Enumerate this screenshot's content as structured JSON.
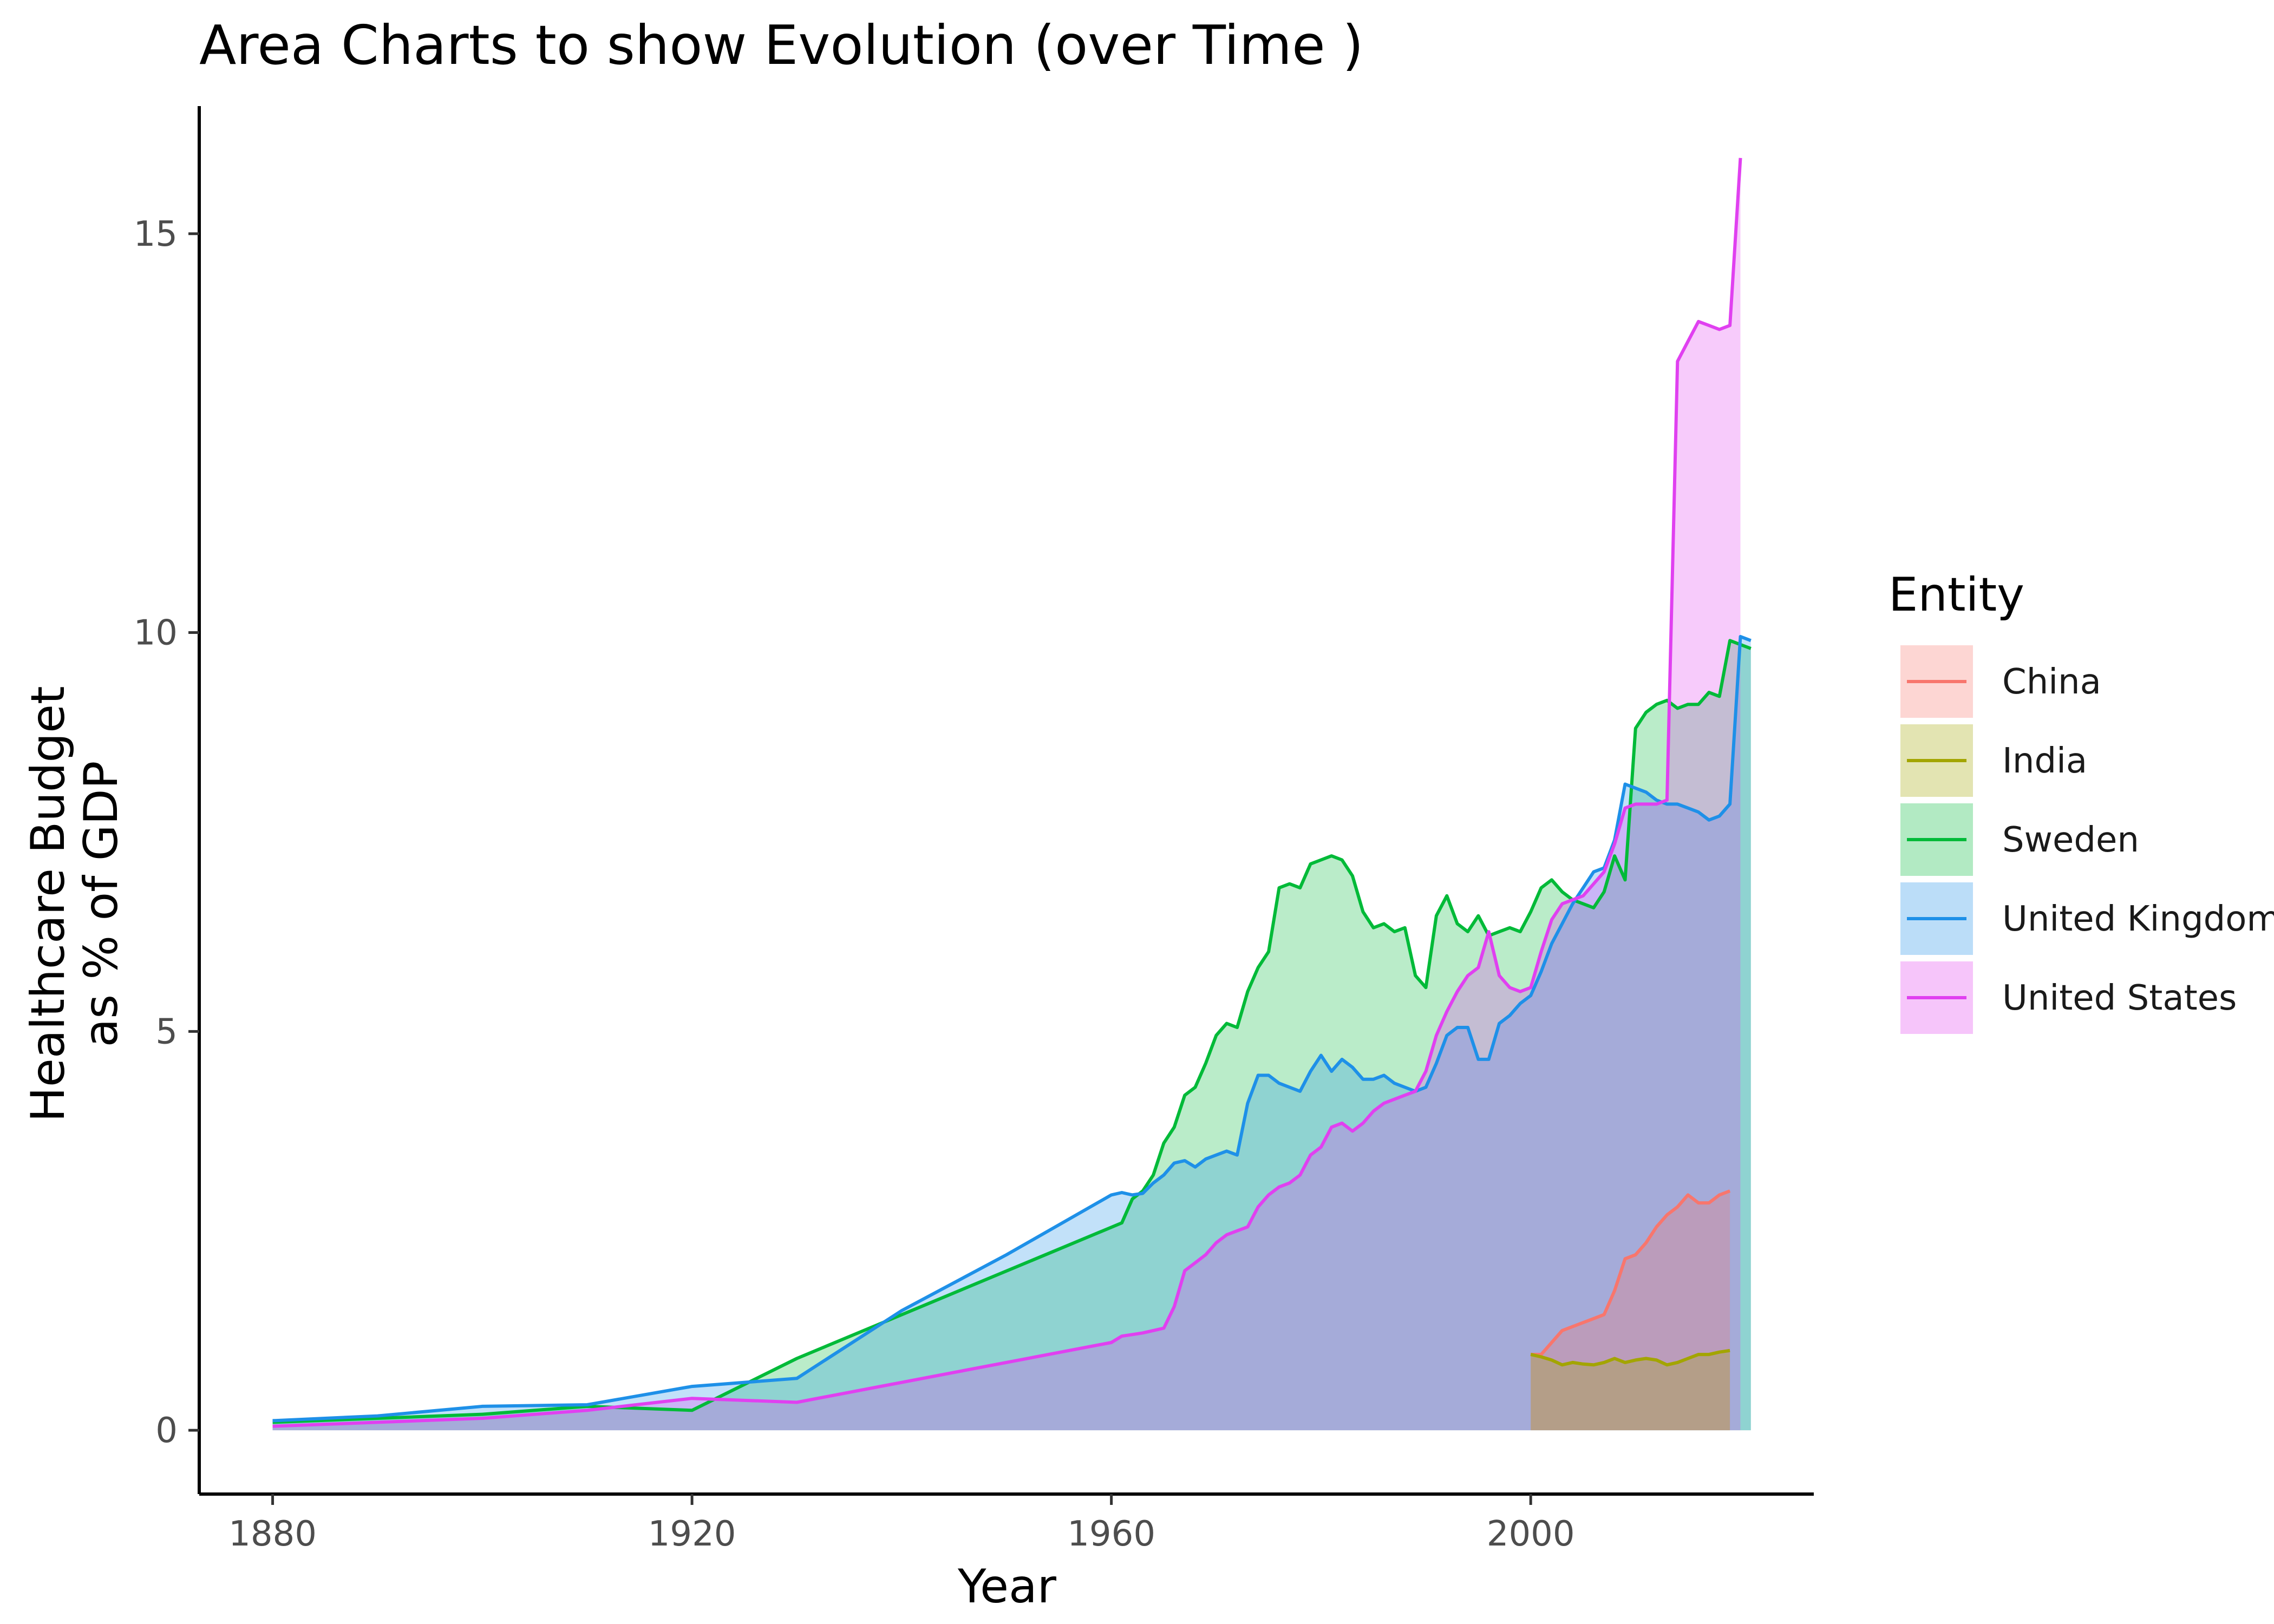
{
  "chart_data": {
    "type": "area",
    "title": "Area Charts to show Evolution (over Time )",
    "xlabel": "Year",
    "ylabel": [
      "Healthcare Budget",
      "as % of GDP"
    ],
    "xlim": [
      1873,
      2027
    ],
    "ylim": [
      -0.8,
      16.6
    ],
    "x_ticks": [
      1880,
      1920,
      1960,
      2000
    ],
    "y_ticks": [
      0,
      5,
      10,
      15
    ],
    "legend_title": "Entity",
    "legend_position": "right",
    "grid": false,
    "series": [
      {
        "name": "Sweden",
        "color": "#00BA38",
        "points": [
          [
            1880,
            0.1
          ],
          [
            1890,
            0.15
          ],
          [
            1900,
            0.2
          ],
          [
            1910,
            0.3
          ],
          [
            1920,
            0.25
          ],
          [
            1930,
            0.9
          ],
          [
            1961,
            2.6
          ],
          [
            1962,
            2.9
          ],
          [
            1963,
            3.0
          ],
          [
            1964,
            3.2
          ],
          [
            1965,
            3.6
          ],
          [
            1966,
            3.8
          ],
          [
            1967,
            4.2
          ],
          [
            1968,
            4.3
          ],
          [
            1969,
            4.6
          ],
          [
            1970,
            4.95
          ],
          [
            1971,
            5.1
          ],
          [
            1972,
            5.05
          ],
          [
            1973,
            5.5
          ],
          [
            1974,
            5.8
          ],
          [
            1975,
            6.0
          ],
          [
            1976,
            6.8
          ],
          [
            1977,
            6.85
          ],
          [
            1978,
            6.8
          ],
          [
            1979,
            7.1
          ],
          [
            1980,
            7.15
          ],
          [
            1981,
            7.2
          ],
          [
            1982,
            7.15
          ],
          [
            1983,
            6.95
          ],
          [
            1984,
            6.5
          ],
          [
            1985,
            6.3
          ],
          [
            1986,
            6.35
          ],
          [
            1987,
            6.25
          ],
          [
            1988,
            6.3
          ],
          [
            1989,
            5.7
          ],
          [
            1990,
            5.55
          ],
          [
            1991,
            6.45
          ],
          [
            1992,
            6.7
          ],
          [
            1993,
            6.35
          ],
          [
            1994,
            6.25
          ],
          [
            1995,
            6.45
          ],
          [
            1996,
            6.2
          ],
          [
            1997,
            6.25
          ],
          [
            1998,
            6.3
          ],
          [
            1999,
            6.25
          ],
          [
            2000,
            6.5
          ],
          [
            2001,
            6.8
          ],
          [
            2002,
            6.9
          ],
          [
            2003,
            6.75
          ],
          [
            2004,
            6.65
          ],
          [
            2005,
            6.6
          ],
          [
            2006,
            6.55
          ],
          [
            2007,
            6.75
          ],
          [
            2008,
            7.2
          ],
          [
            2009,
            6.9
          ],
          [
            2010,
            8.8
          ],
          [
            2011,
            9.0
          ],
          [
            2012,
            9.1
          ],
          [
            2013,
            9.15
          ],
          [
            2014,
            9.05
          ],
          [
            2015,
            9.1
          ],
          [
            2016,
            9.1
          ],
          [
            2017,
            9.25
          ],
          [
            2018,
            9.2
          ],
          [
            2019,
            9.9
          ],
          [
            2020,
            9.85
          ],
          [
            2021,
            9.8
          ]
        ]
      },
      {
        "name": "United Kingdom",
        "color": "#1E90E8",
        "points": [
          [
            1880,
            0.12
          ],
          [
            1890,
            0.18
          ],
          [
            1900,
            0.3
          ],
          [
            1910,
            0.32
          ],
          [
            1920,
            0.55
          ],
          [
            1930,
            0.65
          ],
          [
            1940,
            1.5
          ],
          [
            1950,
            2.2
          ],
          [
            1960,
            2.95
          ],
          [
            1961,
            2.98
          ],
          [
            1962,
            2.95
          ],
          [
            1963,
            2.97
          ],
          [
            1964,
            3.1
          ],
          [
            1965,
            3.2
          ],
          [
            1966,
            3.35
          ],
          [
            1967,
            3.38
          ],
          [
            1968,
            3.3
          ],
          [
            1969,
            3.4
          ],
          [
            1970,
            3.45
          ],
          [
            1971,
            3.5
          ],
          [
            1972,
            3.45
          ],
          [
            1973,
            4.1
          ],
          [
            1974,
            4.45
          ],
          [
            1975,
            4.45
          ],
          [
            1976,
            4.35
          ],
          [
            1977,
            4.3
          ],
          [
            1978,
            4.25
          ],
          [
            1979,
            4.5
          ],
          [
            1980,
            4.7
          ],
          [
            1981,
            4.5
          ],
          [
            1982,
            4.65
          ],
          [
            1983,
            4.55
          ],
          [
            1984,
            4.4
          ],
          [
            1985,
            4.4
          ],
          [
            1986,
            4.45
          ],
          [
            1987,
            4.35
          ],
          [
            1988,
            4.3
          ],
          [
            1989,
            4.25
          ],
          [
            1990,
            4.3
          ],
          [
            1991,
            4.6
          ],
          [
            1992,
            4.95
          ],
          [
            1993,
            5.05
          ],
          [
            1994,
            5.05
          ],
          [
            1995,
            4.65
          ],
          [
            1996,
            4.65
          ],
          [
            1997,
            5.1
          ],
          [
            1998,
            5.2
          ],
          [
            1999,
            5.35
          ],
          [
            2000,
            5.45
          ],
          [
            2001,
            5.75
          ],
          [
            2002,
            6.1
          ],
          [
            2003,
            6.35
          ],
          [
            2004,
            6.6
          ],
          [
            2005,
            6.8
          ],
          [
            2006,
            7.0
          ],
          [
            2007,
            7.05
          ],
          [
            2008,
            7.4
          ],
          [
            2009,
            8.1
          ],
          [
            2010,
            8.05
          ],
          [
            2011,
            8.0
          ],
          [
            2012,
            7.9
          ],
          [
            2013,
            7.85
          ],
          [
            2014,
            7.85
          ],
          [
            2015,
            7.8
          ],
          [
            2016,
            7.75
          ],
          [
            2017,
            7.65
          ],
          [
            2018,
            7.7
          ],
          [
            2019,
            7.85
          ],
          [
            2020,
            9.95
          ],
          [
            2021,
            9.9
          ]
        ]
      },
      {
        "name": "United States",
        "color": "#E040F0",
        "points": [
          [
            1880,
            0.05
          ],
          [
            1890,
            0.1
          ],
          [
            1900,
            0.15
          ],
          [
            1910,
            0.25
          ],
          [
            1920,
            0.4
          ],
          [
            1930,
            0.35
          ],
          [
            1960,
            1.1
          ],
          [
            1961,
            1.18
          ],
          [
            1962,
            1.2
          ],
          [
            1963,
            1.22
          ],
          [
            1964,
            1.25
          ],
          [
            1965,
            1.28
          ],
          [
            1966,
            1.55
          ],
          [
            1967,
            2.0
          ],
          [
            1968,
            2.1
          ],
          [
            1969,
            2.2
          ],
          [
            1970,
            2.35
          ],
          [
            1971,
            2.45
          ],
          [
            1972,
            2.5
          ],
          [
            1973,
            2.55
          ],
          [
            1974,
            2.8
          ],
          [
            1975,
            2.95
          ],
          [
            1976,
            3.05
          ],
          [
            1977,
            3.1
          ],
          [
            1978,
            3.2
          ],
          [
            1979,
            3.45
          ],
          [
            1980,
            3.55
          ],
          [
            1981,
            3.8
          ],
          [
            1982,
            3.85
          ],
          [
            1983,
            3.75
          ],
          [
            1984,
            3.85
          ],
          [
            1985,
            4.0
          ],
          [
            1986,
            4.1
          ],
          [
            1987,
            4.15
          ],
          [
            1988,
            4.2
          ],
          [
            1989,
            4.25
          ],
          [
            1990,
            4.5
          ],
          [
            1991,
            4.95
          ],
          [
            1992,
            5.25
          ],
          [
            1993,
            5.5
          ],
          [
            1994,
            5.7
          ],
          [
            1995,
            5.8
          ],
          [
            1996,
            6.25
          ],
          [
            1997,
            5.7
          ],
          [
            1998,
            5.55
          ],
          [
            1999,
            5.5
          ],
          [
            2000,
            5.55
          ],
          [
            2001,
            6.0
          ],
          [
            2002,
            6.4
          ],
          [
            2003,
            6.6
          ],
          [
            2004,
            6.65
          ],
          [
            2005,
            6.7
          ],
          [
            2006,
            6.85
          ],
          [
            2007,
            7.0
          ],
          [
            2008,
            7.35
          ],
          [
            2009,
            7.8
          ],
          [
            2010,
            7.85
          ],
          [
            2011,
            7.85
          ],
          [
            2012,
            7.85
          ],
          [
            2013,
            7.9
          ],
          [
            2014,
            13.4
          ],
          [
            2015,
            13.65
          ],
          [
            2016,
            13.9
          ],
          [
            2017,
            13.85
          ],
          [
            2018,
            13.8
          ],
          [
            2019,
            13.85
          ],
          [
            2020,
            15.95
          ]
        ]
      },
      {
        "name": "China",
        "color": "#F8766D",
        "points": [
          [
            2000,
            0.95
          ],
          [
            2001,
            0.95
          ],
          [
            2002,
            1.1
          ],
          [
            2003,
            1.25
          ],
          [
            2004,
            1.3
          ],
          [
            2005,
            1.35
          ],
          [
            2006,
            1.4
          ],
          [
            2007,
            1.45
          ],
          [
            2008,
            1.75
          ],
          [
            2009,
            2.15
          ],
          [
            2010,
            2.2
          ],
          [
            2011,
            2.35
          ],
          [
            2012,
            2.55
          ],
          [
            2013,
            2.7
          ],
          [
            2014,
            2.8
          ],
          [
            2015,
            2.95
          ],
          [
            2016,
            2.85
          ],
          [
            2017,
            2.85
          ],
          [
            2018,
            2.95
          ],
          [
            2019,
            3.0
          ]
        ]
      },
      {
        "name": "India",
        "color": "#A3A500",
        "points": [
          [
            2000,
            0.95
          ],
          [
            2001,
            0.92
          ],
          [
            2002,
            0.88
          ],
          [
            2003,
            0.82
          ],
          [
            2004,
            0.85
          ],
          [
            2005,
            0.83
          ],
          [
            2006,
            0.82
          ],
          [
            2007,
            0.85
          ],
          [
            2008,
            0.9
          ],
          [
            2009,
            0.85
          ],
          [
            2010,
            0.88
          ],
          [
            2011,
            0.9
          ],
          [
            2012,
            0.88
          ],
          [
            2013,
            0.82
          ],
          [
            2014,
            0.85
          ],
          [
            2015,
            0.9
          ],
          [
            2016,
            0.95
          ],
          [
            2017,
            0.95
          ],
          [
            2018,
            0.98
          ],
          [
            2019,
            1.0
          ]
        ]
      }
    ],
    "legend_order": [
      "China",
      "India",
      "Sweden",
      "United Kingdom",
      "United States"
    ]
  }
}
